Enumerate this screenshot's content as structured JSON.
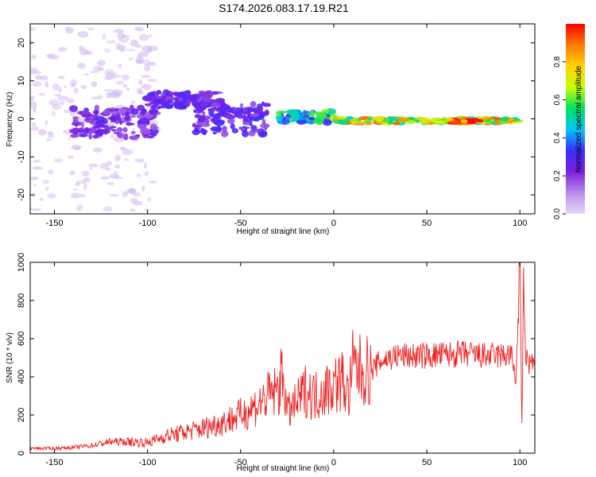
{
  "figure": {
    "title": "S174.2026.083.17.19.R21"
  },
  "colors": {
    "snr_line": "#ee2222",
    "background": "#ffffff",
    "axis": "#000000"
  },
  "chart_data": [
    {
      "type": "heatmap",
      "name": "spectrogram",
      "title": "S174.2026.083.17.19.R21",
      "xlabel": "Height of straight line (km)",
      "ylabel": "Frequency (Hz)",
      "xlim": [
        -163,
        108
      ],
      "ylim": [
        -25,
        25
      ],
      "xticks": [
        -150,
        -100,
        -50,
        0,
        50,
        100
      ],
      "yticks": [
        -20,
        -10,
        0,
        10,
        20
      ],
      "colorbar": {
        "label": "Normalized spectral amplitude",
        "range": [
          0.0,
          1.0
        ],
        "ticks": [
          0.0,
          0.2,
          0.4,
          0.6,
          0.8
        ],
        "tick_labels": [
          "0.0",
          "0.2",
          "0.4",
          "0.6",
          "0.8"
        ],
        "stops": [
          "#e6d9f7",
          "#b98ae8",
          "#7a1fe0",
          "#3b2dff",
          "#00c8ff",
          "#00e060",
          "#c8ff00",
          "#ffd200",
          "#ff7a00",
          "#ff0000"
        ]
      },
      "features": [
        {
          "description_free": true,
          "x_start": -163,
          "x_end": -95,
          "freq_center": 0,
          "freq_spread": 24,
          "amplitude": 0.05
        },
        {
          "x_start": -140,
          "x_end": -95,
          "freq_center": -1,
          "freq_spread": 4,
          "amplitude": 0.25
        },
        {
          "x_start": -100,
          "x_end": -60,
          "freq_center": 5,
          "freq_spread": 2,
          "amplitude": 0.3
        },
        {
          "x_start": -75,
          "x_end": -35,
          "freq_center": 0,
          "freq_spread": 4,
          "amplitude": 0.3
        },
        {
          "x_start": -30,
          "x_end": 0,
          "freq_center": 0.5,
          "freq_spread": 1.5,
          "amplitude": 0.55
        },
        {
          "x_start": 0,
          "x_end": 100,
          "freq_center": -0.5,
          "freq_spread": 0.8,
          "amplitude": 0.8
        },
        {
          "x_start": 55,
          "x_end": 82,
          "freq_center": -0.6,
          "freq_spread": 0.5,
          "amplitude": 0.97
        }
      ]
    },
    {
      "type": "line",
      "name": "snr",
      "title": "",
      "xlabel": "Height of straight line (km)",
      "ylabel": "SNR (10 * v/v)",
      "xlim": [
        -163,
        108
      ],
      "ylim": [
        0,
        1000
      ],
      "xticks": [
        -150,
        -100,
        -50,
        0,
        50,
        100
      ],
      "yticks": [
        0,
        200,
        400,
        600,
        800,
        1000
      ],
      "series": [
        {
          "name": "SNR",
          "x": [
            -163,
            -150,
            -140,
            -130,
            -120,
            -110,
            -100,
            -90,
            -80,
            -70,
            -60,
            -50,
            -45,
            -40,
            -35,
            -30,
            -27,
            -25,
            -20,
            -15,
            -10,
            -5,
            0,
            5,
            8,
            10,
            15,
            20,
            25,
            30,
            35,
            40,
            50,
            60,
            70,
            80,
            90,
            95,
            98,
            100,
            101,
            102,
            103,
            105,
            108
          ],
          "y": [
            25,
            25,
            30,
            40,
            60,
            60,
            55,
            90,
            110,
            130,
            160,
            200,
            230,
            260,
            300,
            330,
            420,
            210,
            260,
            330,
            300,
            330,
            360,
            380,
            290,
            450,
            430,
            430,
            480,
            500,
            510,
            510,
            510,
            515,
            520,
            510,
            510,
            520,
            390,
            1000,
            120,
            880,
            520,
            470,
            480
          ]
        }
      ]
    }
  ]
}
